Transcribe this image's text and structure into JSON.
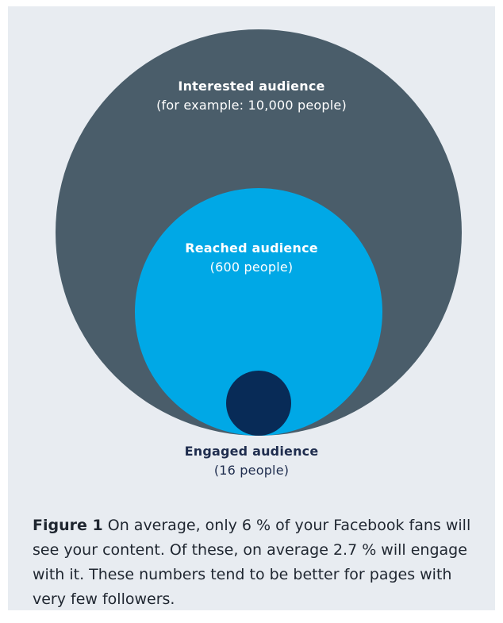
{
  "diagram": {
    "outer": {
      "title": "Interested audience",
      "subtitle": "(for example: 10,000 people)",
      "color": "#4a5d6a"
    },
    "middle": {
      "title": "Reached audience",
      "subtitle": "(600 people)",
      "color": "#00a8e6"
    },
    "inner": {
      "title": "Engaged audience",
      "subtitle": "(16 people)",
      "color": "#082b57"
    },
    "background_color": "#e8ecf1"
  },
  "caption": {
    "figure_label": "Figure 1",
    "text": " On average, only 6 % of your Facebook fans will see your content. Of these, on average 2.7 % will engage with it. These numbers tend to be better for pages with very few followers."
  }
}
